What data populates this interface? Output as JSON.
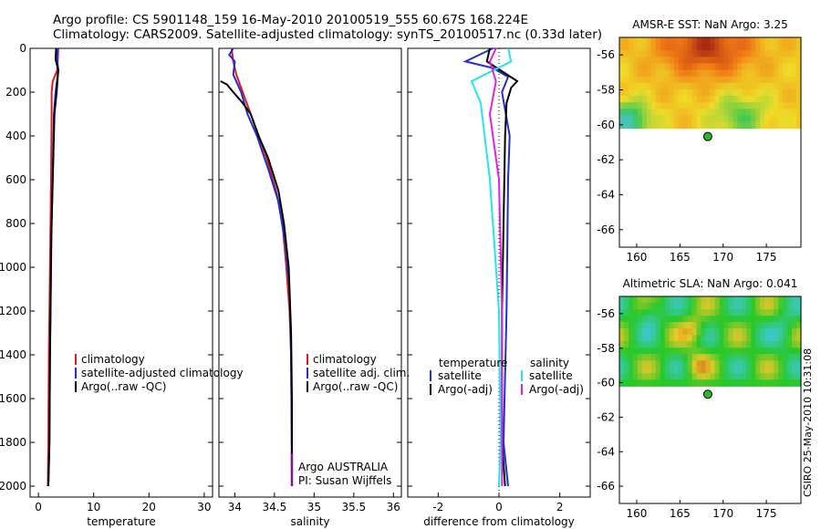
{
  "header": {
    "line1": "Argo profile: CS 5901148_159 16-May-2010 20100519_555 60.67S 168.224E",
    "line2": "Climatology: CARS2009. Satellite-adjusted climatology: synTS_20100517.nc (0.33d later)"
  },
  "side_label": "CSIRO 25-May-2010 10:31:08",
  "colors": {
    "red": "#e31a1c",
    "blue": "#1f2fd0",
    "black": "#000000",
    "cyan": "#22e6e6",
    "magenta": "#e020e0",
    "purple": "#7a1d8a"
  },
  "chart_data": [
    {
      "type": "line",
      "id": "temperature",
      "xlabel": "temperature",
      "ylabel": "",
      "xlim": [
        -1.5,
        31.5
      ],
      "ylim": [
        2050,
        0
      ],
      "xticks": [
        0,
        10,
        20,
        30
      ],
      "yticks": [
        0,
        200,
        400,
        600,
        800,
        1000,
        1200,
        1400,
        1600,
        1800,
        2000
      ],
      "legend": [
        "climatology",
        "satellite-adjusted climatology",
        "Argo(..raw -QC)"
      ],
      "series": [
        {
          "name": "climatology",
          "color": "red",
          "x": [
            3.6,
            3.5,
            3.4,
            2.6,
            2.4,
            2.4,
            2.3,
            2.2,
            2.1,
            2.0,
            1.9,
            1.8,
            1.7
          ],
          "y": [
            0,
            50,
            100,
            150,
            200,
            300,
            600,
            800,
            1000,
            1200,
            1400,
            1800,
            2000
          ]
        },
        {
          "name": "satellite-adjusted climatology",
          "color": "blue",
          "x": [
            3.5,
            3.4,
            3.6,
            3.1,
            2.8,
            2.6,
            2.4,
            2.3,
            2.2,
            2.1,
            2.0,
            1.8
          ],
          "y": [
            0,
            50,
            100,
            200,
            300,
            600,
            800,
            1000,
            1200,
            1400,
            1800,
            2000
          ]
        },
        {
          "name": "Argo(..raw -QC)",
          "color": "black",
          "x": [
            3.2,
            3.1,
            3.6,
            3.3,
            2.9,
            2.6,
            2.3,
            2.2,
            2.1,
            2.0,
            1.8
          ],
          "y": [
            0,
            50,
            100,
            200,
            300,
            600,
            900,
            1200,
            1400,
            1800,
            2000
          ]
        }
      ]
    },
    {
      "type": "line",
      "id": "salinity",
      "xlabel": "salinity",
      "ylabel": "",
      "xlim": [
        33.8,
        36.1
      ],
      "ylim": [
        2050,
        0
      ],
      "xticks": [
        34,
        34.5,
        35,
        35.5,
        36
      ],
      "yticks": [],
      "legend": [
        "climatology",
        "satellite adj. clim.",
        "Argo(..raw -QC)"
      ],
      "annotation": [
        "Argo AUSTRALIA",
        "PI: Susan Wijffels"
      ],
      "series": [
        {
          "name": "climatology",
          "color": "red",
          "x": [
            33.96,
            33.98,
            34.02,
            34.1,
            34.2,
            34.3,
            34.4,
            34.52,
            34.6,
            34.65,
            34.69,
            34.71,
            34.72,
            34.72
          ],
          "y": [
            0,
            60,
            120,
            200,
            300,
            400,
            500,
            650,
            800,
            1000,
            1200,
            1400,
            1800,
            2000
          ]
        },
        {
          "name": "satellite adj. clim.",
          "color": "blue",
          "x": [
            33.98,
            33.93,
            34.0,
            33.98,
            34.08,
            34.16,
            34.28,
            34.42,
            34.55,
            34.64,
            34.69,
            34.71,
            34.72
          ],
          "y": [
            0,
            30,
            60,
            120,
            200,
            300,
            400,
            550,
            700,
            900,
            1100,
            1400,
            2000
          ]
        },
        {
          "name": "Argo(..raw -QC)",
          "color": "black",
          "x": [
            33.82,
            33.9,
            33.98,
            34.1,
            34.2,
            34.3,
            34.42,
            34.55,
            34.62,
            34.68,
            34.71,
            34.72,
            34.72
          ],
          "y": [
            150,
            165,
            200,
            250,
            300,
            400,
            500,
            650,
            800,
            1000,
            1300,
            1600,
            2000
          ]
        },
        {
          "name": "Argo marker",
          "color": "purple",
          "x": [
            34.72,
            34.72
          ],
          "y": [
            1850,
            2000
          ]
        }
      ]
    },
    {
      "type": "line",
      "id": "difference",
      "xlabel": "difference from climatology",
      "ylabel": "",
      "xlim": [
        -3.0,
        3.0
      ],
      "ylim": [
        2050,
        0
      ],
      "xticks": [
        -2,
        0,
        2
      ],
      "yticks": [],
      "legend_groups": [
        {
          "title": "temperature",
          "items": [
            "satellite",
            "Argo(-adj)"
          ]
        },
        {
          "title": "salinity",
          "items": [
            "satellite",
            "Argo(-adj)"
          ]
        }
      ],
      "series": [
        {
          "name": "temperature satellite",
          "color": "blue",
          "x": [
            -0.2,
            -1.1,
            -0.2,
            0.3,
            0.1,
            0.35,
            0.3,
            0.25,
            0.15,
            0.3
          ],
          "y": [
            0,
            60,
            90,
            130,
            200,
            400,
            600,
            1200,
            1800,
            2000
          ]
        },
        {
          "name": "temperature Argo(-adj)",
          "color": "black",
          "x": [
            -0.3,
            -0.4,
            0.6,
            0.4,
            0.25,
            0.2,
            0.15,
            0.1,
            0.1,
            0.2
          ],
          "y": [
            0,
            60,
            150,
            180,
            250,
            400,
            800,
            1200,
            1800,
            2000
          ]
        },
        {
          "name": "salinity satellite",
          "color": "cyan",
          "x": [
            0.3,
            0.4,
            -0.9,
            -0.6,
            -0.3,
            0.0,
            0.05,
            0.0
          ],
          "y": [
            0,
            60,
            150,
            250,
            600,
            1200,
            1800,
            2000
          ]
        },
        {
          "name": "salinity Argo(-adj)",
          "color": "magenta",
          "x": [
            -0.1,
            -0.3,
            -0.1,
            -0.3,
            0.0,
            0.1,
            0.1
          ],
          "y": [
            0,
            60,
            150,
            300,
            600,
            1200,
            2000
          ]
        }
      ]
    },
    {
      "type": "heatmap",
      "id": "sst",
      "title": "AMSR-E SST: NaN Argo: 3.25",
      "xlim": [
        158,
        179
      ],
      "ylim": [
        -67,
        -55
      ],
      "xticks": [
        160,
        165,
        170,
        175
      ],
      "yticks": [
        -56,
        -58,
        -60,
        -62,
        -64,
        -66
      ],
      "data_extent": {
        "lat": [
          -55,
          -60.2
        ]
      },
      "marker": {
        "lon": 168.224,
        "lat": -60.67
      }
    },
    {
      "type": "heatmap",
      "id": "sla",
      "title": "Altimetric SLA: NaN Argo: 0.041",
      "xlim": [
        158,
        179
      ],
      "ylim": [
        -67,
        -55
      ],
      "xticks": [
        160,
        165,
        170,
        175
      ],
      "yticks": [
        -56,
        -58,
        -60,
        -62,
        -64,
        -66
      ],
      "data_extent": {
        "lat": [
          -55,
          -60.2
        ]
      },
      "marker": {
        "lon": 168.224,
        "lat": -60.67
      }
    }
  ]
}
